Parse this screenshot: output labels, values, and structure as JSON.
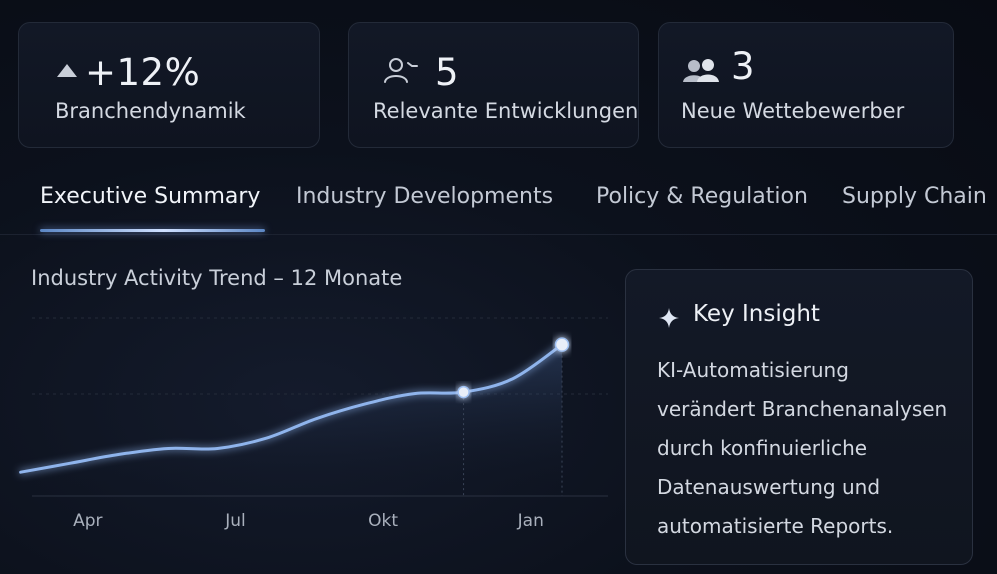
{
  "stats": [
    {
      "icon": "trend-up-triangle-icon",
      "value": "+12%",
      "label": "Branchendynamik"
    },
    {
      "icon": "person-icon",
      "value": "5",
      "label": "Relevante Entwicklungen"
    },
    {
      "icon": "group-icon",
      "value": "3",
      "label": "Neue Wettebewerber"
    }
  ],
  "tabs": [
    {
      "label": "Executive Summary",
      "active": true
    },
    {
      "label": "Industry Developments",
      "active": false
    },
    {
      "label": "Policy & Regulation",
      "active": false
    },
    {
      "label": "Supply Chain",
      "active": false
    }
  ],
  "chart_data": {
    "type": "line",
    "title": "Industry Activity Trend – 12 Monate",
    "xlabel": "",
    "ylabel": "",
    "x": [
      1,
      2,
      3,
      4,
      5,
      6,
      7,
      8,
      9,
      10,
      11,
      12
    ],
    "series": [
      {
        "values": [
          12,
          18,
          24,
          28,
          28,
          35,
          48,
          58,
          65,
          66,
          75,
          98
        ]
      }
    ],
    "tick_labels": [
      {
        "x": 2,
        "label": "Apr"
      },
      {
        "x": 5,
        "label": "Jul"
      },
      {
        "x": 8,
        "label": "Okt"
      },
      {
        "x": 11,
        "label": "Jan"
      }
    ],
    "highlight_points": [
      10,
      12
    ],
    "ylim": [
      0,
      120
    ],
    "grid": true,
    "line_color": "#8fb4ec"
  },
  "insight": {
    "icon": "sparkle-icon",
    "title": "Key Insight",
    "lines": [
      "KI-Automatisierung",
      "verändert Branchenanalysen",
      "durch konfinuierliche",
      "Datenauswertung und",
      "automatisierte Reports."
    ]
  },
  "colors": {
    "background": "#0b0f18",
    "card_border": "#232a38",
    "accent": "#8fb4ec",
    "text": "#e6eaf2"
  }
}
